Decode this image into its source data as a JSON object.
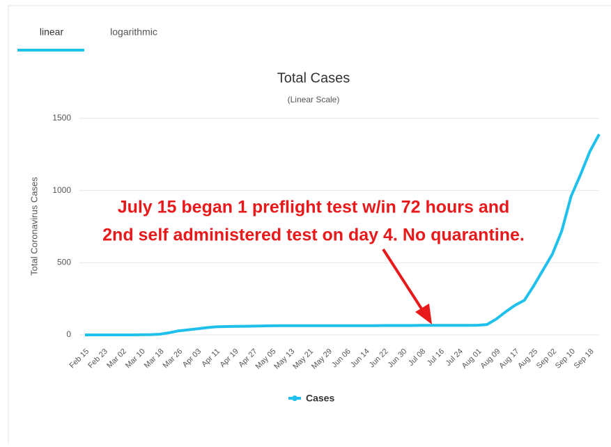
{
  "tabs": [
    "linear",
    "logarithmic"
  ],
  "chart_data": {
    "type": "line",
    "title": "Total Cases",
    "subtitle": "(Linear Scale)",
    "y_axis_label": "Total Coronavirus Cases",
    "annotation": [
      "July 15 began 1 preflight test w/in 72 hours and",
      "2nd self administered test on day 4.  No quarantine."
    ],
    "categories": [
      "Feb 15",
      null,
      "Feb 23",
      null,
      "Mar 02",
      null,
      "Mar 10",
      null,
      "Mar 18",
      null,
      "Mar 26",
      null,
      "Apr 03",
      null,
      "Apr 11",
      null,
      "Apr 19",
      null,
      "Apr 27",
      null,
      "May 05",
      null,
      "May 13",
      null,
      "May 21",
      null,
      "May 29",
      null,
      "Jun 06",
      null,
      "Jun 14",
      null,
      "Jun 22",
      null,
      "Jun 30",
      null,
      "Jul 08",
      null,
      "Jul 16",
      null,
      "Jul 24",
      null,
      "Aug 01",
      null,
      "Aug 09",
      null,
      "Aug 17",
      null,
      "Aug 25",
      null,
      "Sep 02",
      null,
      "Sep 10",
      null,
      "Sep 18",
      null
    ],
    "series": [
      {
        "name": "Cases",
        "color": "#1fc1ec",
        "values": [
          0,
          0,
          0,
          0,
          0,
          0,
          1,
          2,
          5,
          15,
          28,
          35,
          42,
          50,
          56,
          58,
          59,
          60,
          61,
          62,
          63,
          64,
          64,
          64,
          64,
          64,
          64,
          64,
          64,
          64,
          64,
          64,
          65,
          65,
          65,
          65,
          66,
          66,
          66,
          66,
          66,
          66,
          67,
          72,
          110,
          160,
          205,
          240,
          340,
          450,
          560,
          720,
          960,
          1110,
          1270,
          1390
        ]
      }
    ],
    "ylim": [
      0,
      1500
    ],
    "yticks": [
      0,
      500,
      1000,
      1500
    ],
    "grid": true,
    "legend": "bottom"
  }
}
